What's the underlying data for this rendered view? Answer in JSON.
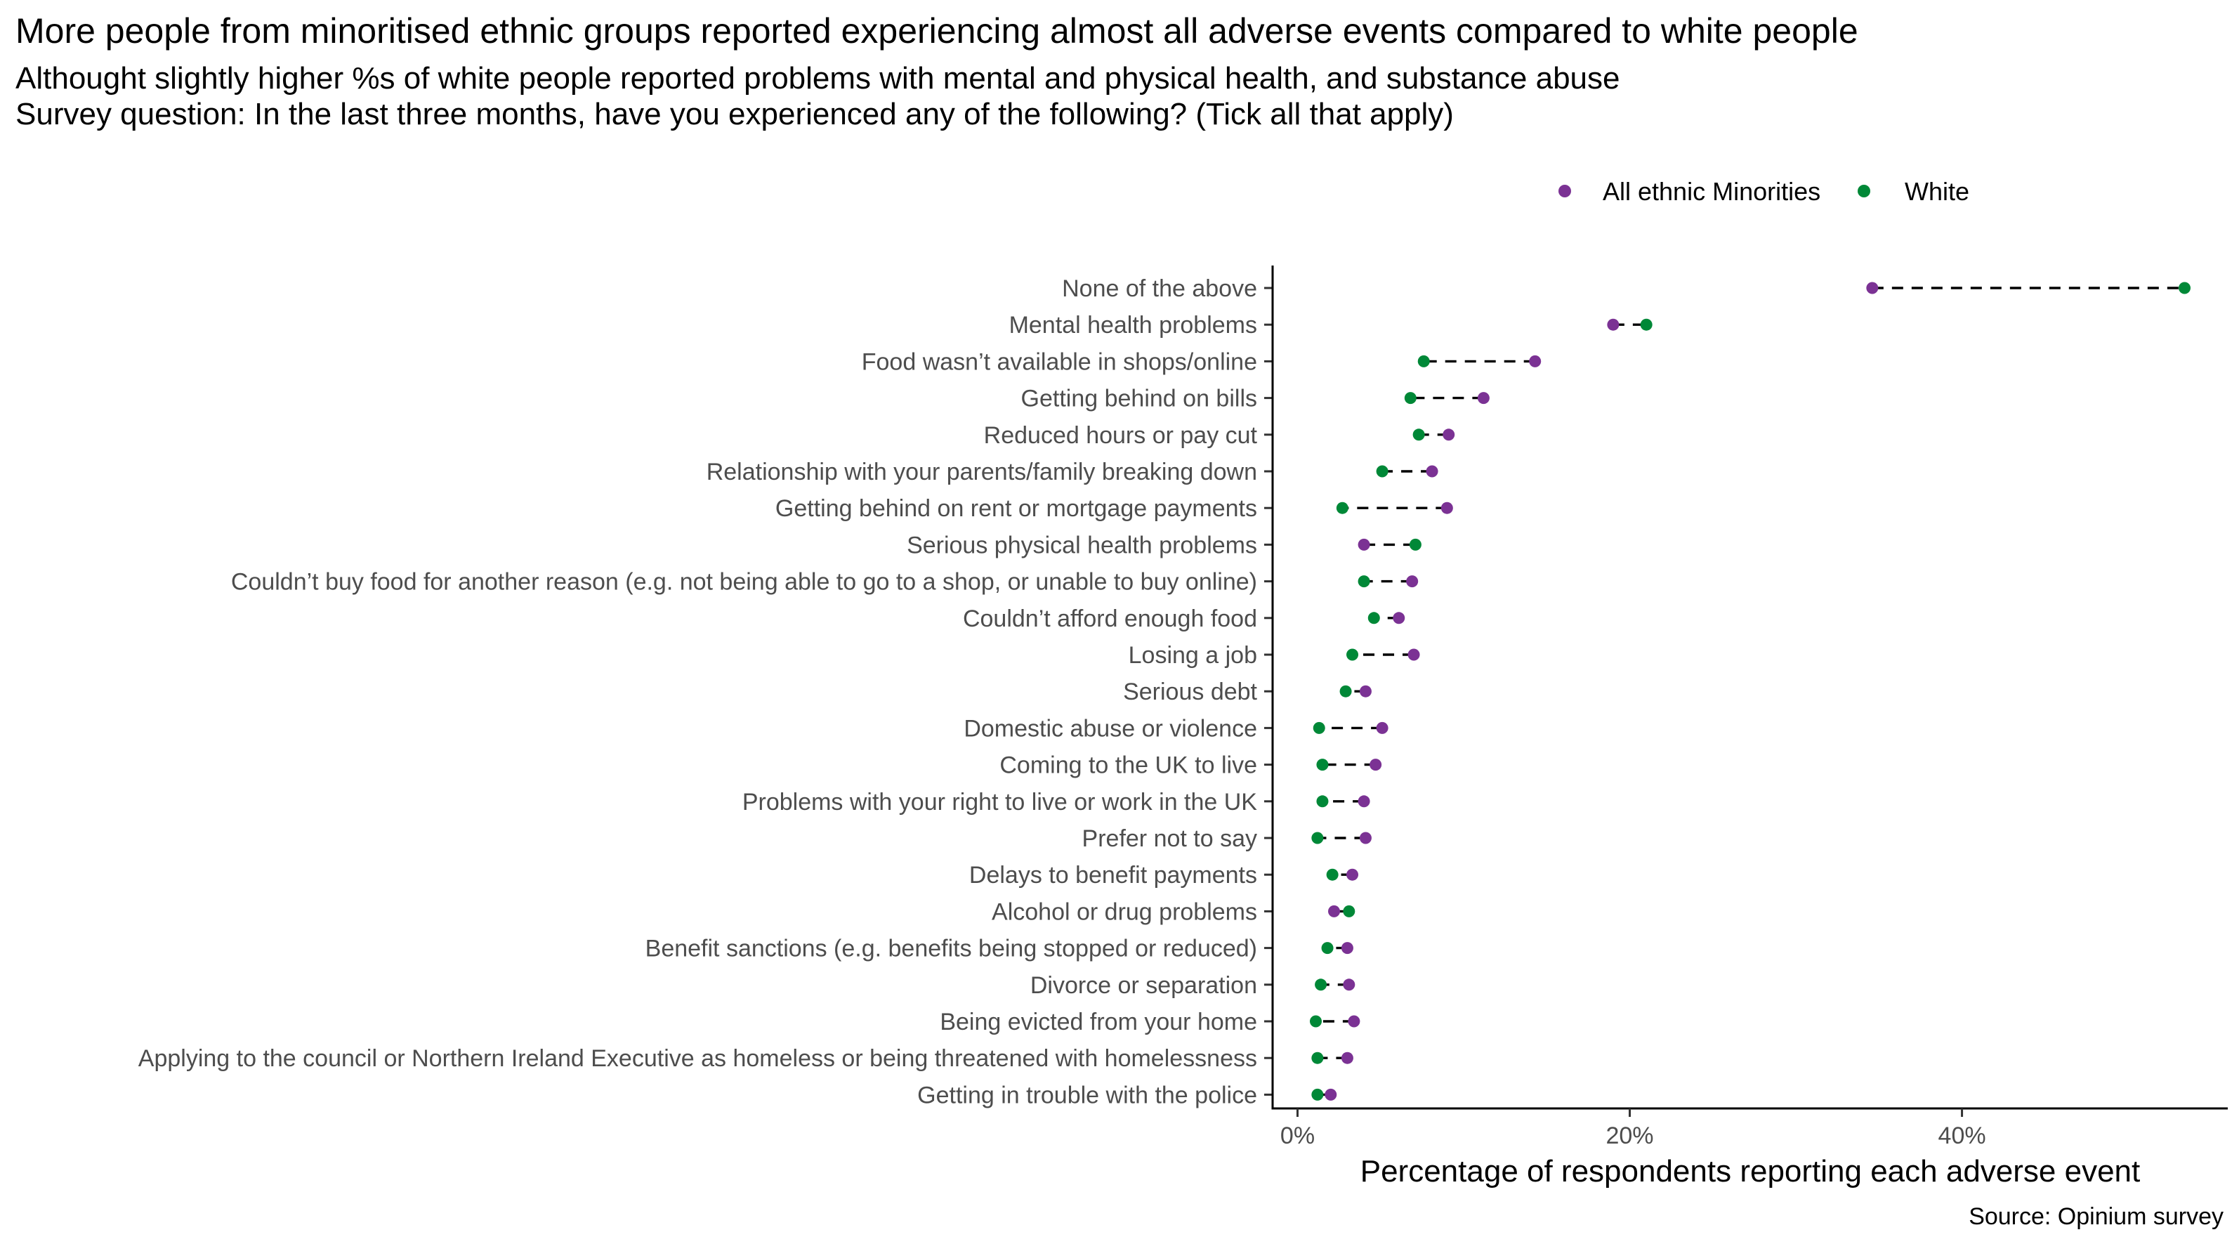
{
  "chart_data": {
    "type": "scatter",
    "subtype": "dumbbell",
    "title": "More people from minoritised ethnic groups reported experiencing almost all adverse events compared to white people",
    "subtitle": [
      "Althought slightly higher %s of white people reported problems with mental and physical health, and substance abuse",
      "Survey question: In the last three months, have you experienced any of the following? (Tick all that apply)"
    ],
    "xlabel": "Percentage of respondents reporting each adverse event",
    "ylabel": "",
    "caption": "Source: Opinium survey",
    "xlim": [
      -1.5,
      56
    ],
    "xticks": [
      0,
      20,
      40
    ],
    "xtick_labels": [
      "0%",
      "20%",
      "40%"
    ],
    "legend_position": "top-right",
    "grid": false,
    "series": [
      {
        "name": "All ethnic Minorities",
        "color": "#7B3294"
      },
      {
        "name": "White",
        "color": "#008837"
      }
    ],
    "categories": [
      "None of the above",
      "Mental health problems",
      "Food wasn’t available in shops/online",
      "Getting behind on bills",
      "Reduced hours or pay cut",
      "Relationship with your parents/family breaking down",
      "Getting behind on rent or mortgage payments",
      "Serious physical health problems",
      "Couldn’t buy food for another reason (e.g. not being able to go to a shop, or unable to buy online)",
      "Couldn’t afford enough food",
      "Losing a job",
      "Serious debt",
      "Domestic abuse or violence",
      "Coming to the UK to live",
      "Problems with your right to live or work in the UK",
      "Prefer not to say",
      "Delays to benefit payments",
      "Alcohol or drug problems",
      "Benefit sanctions (e.g. benefits being stopped or reduced)",
      "Divorce or separation",
      "Being evicted from your home",
      "Applying to the council or Northern Ireland Executive as homeless or being threatened with homelessness",
      "Getting in trouble with the police"
    ],
    "values": {
      "All ethnic Minorities": [
        34.6,
        19.0,
        14.3,
        11.2,
        9.1,
        8.1,
        9.0,
        4.0,
        6.9,
        6.1,
        7.0,
        4.1,
        5.1,
        4.7,
        4.0,
        4.1,
        3.3,
        2.2,
        3.0,
        3.1,
        3.4,
        3.0,
        2.0
      ],
      "White": [
        53.4,
        21.0,
        7.6,
        6.8,
        7.3,
        5.1,
        2.7,
        7.1,
        4.0,
        4.6,
        3.3,
        2.9,
        1.3,
        1.5,
        1.5,
        1.2,
        2.1,
        3.1,
        1.8,
        1.4,
        1.1,
        1.2,
        1.2
      ]
    }
  }
}
